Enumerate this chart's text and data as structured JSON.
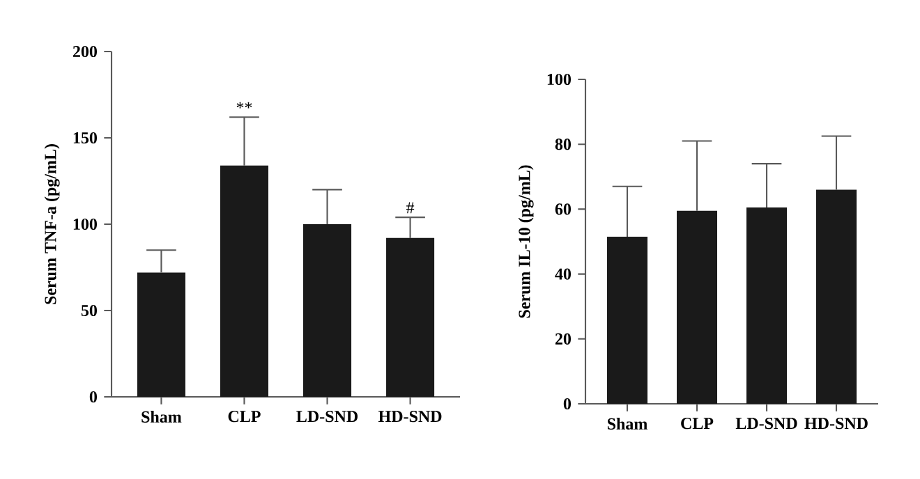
{
  "chart_data": [
    {
      "type": "bar",
      "ylabel": "Serum TNF-a (pg/mL)",
      "categories": [
        "Sham",
        "CLP",
        "LD-SND",
        "HD-SND"
      ],
      "values": [
        72,
        134,
        100,
        92
      ],
      "errors": [
        [
          72,
          85
        ],
        [
          134,
          162
        ],
        [
          100,
          120
        ],
        [
          92,
          104
        ]
      ],
      "color": "#1a1a1a",
      "ylim": [
        0,
        200
      ],
      "yticks": [
        0,
        50,
        100,
        150,
        200
      ],
      "grid": false,
      "annotations": [
        "**",
        "#"
      ]
    },
    {
      "type": "bar",
      "ylabel": "Serum IL-10 (pg/mL)",
      "categories": [
        "Sham",
        "CLP",
        "LD-SND",
        "HD-SND"
      ],
      "values": [
        51.5,
        59.5,
        60.5,
        66
      ],
      "errors": [
        [
          51.5,
          67
        ],
        [
          59.5,
          81
        ],
        [
          60.5,
          74
        ],
        [
          66,
          82.5
        ]
      ],
      "color": "#1a1a1a",
      "ylim": [
        0,
        100
      ],
      "yticks": [
        0,
        20,
        40,
        60,
        80,
        100
      ],
      "grid": false
    }
  ]
}
